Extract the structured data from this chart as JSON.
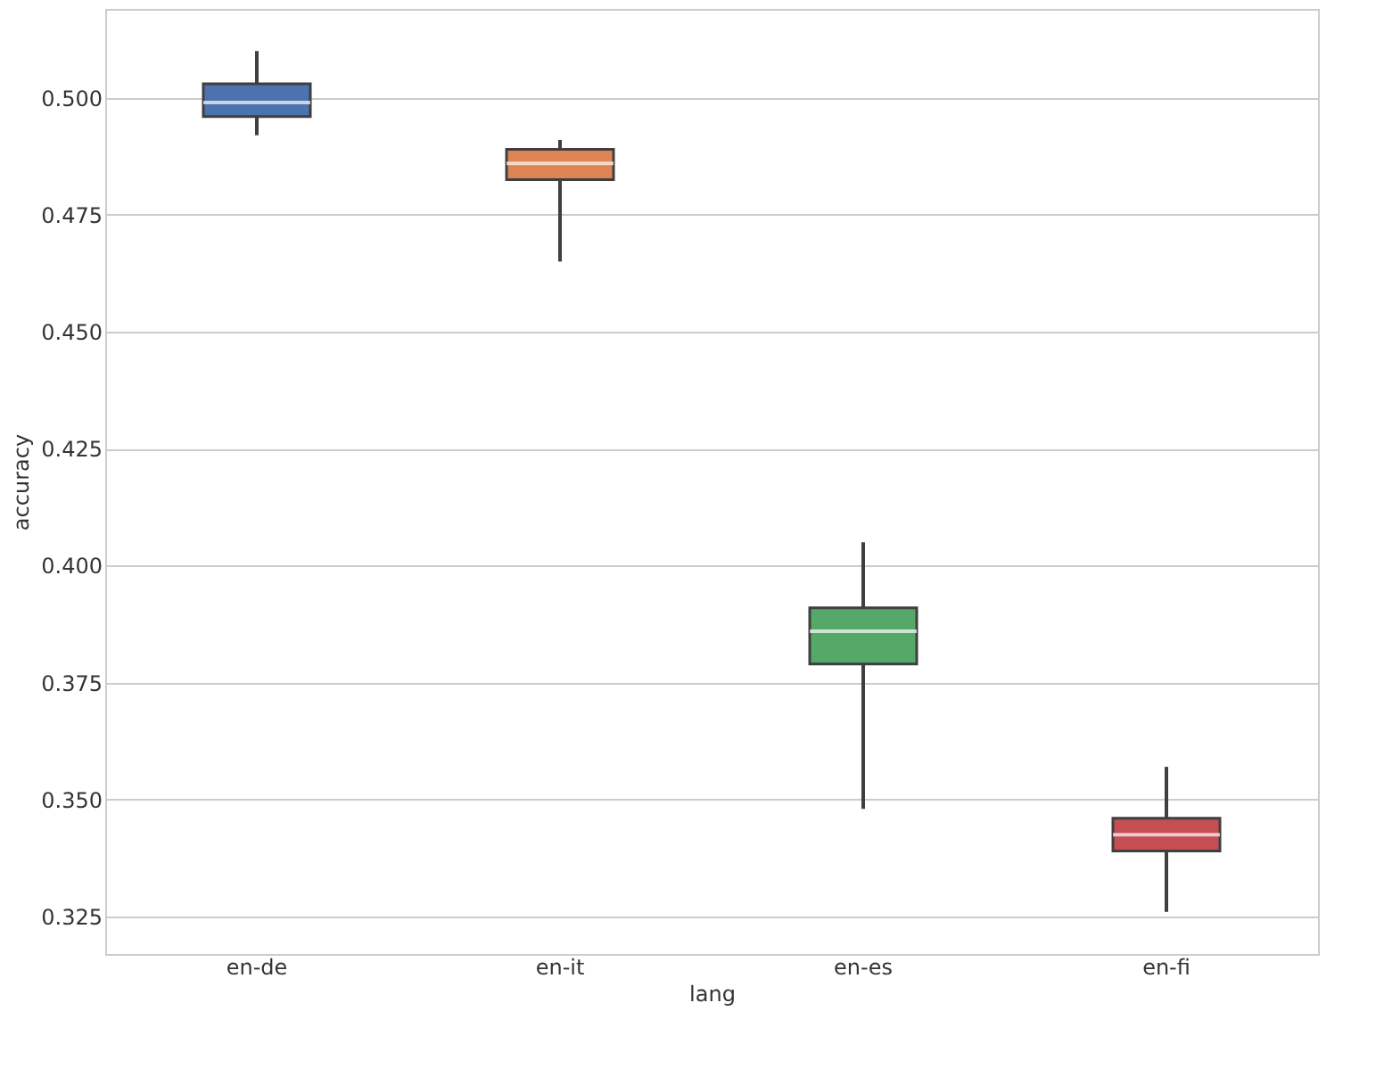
{
  "chart_data": {
    "type": "box",
    "xlabel": "lang",
    "ylabel": "accuracy",
    "categories": [
      "en-de",
      "en-it",
      "en-es",
      "en-fi"
    ],
    "colors": [
      "#4c72b0",
      "#dd8452",
      "#55a868",
      "#c44e52"
    ],
    "boxes": [
      {
        "low": 0.492,
        "q1": 0.496,
        "median": 0.499,
        "q3": 0.503,
        "high": 0.51
      },
      {
        "low": 0.465,
        "q1": 0.4825,
        "median": 0.486,
        "q3": 0.489,
        "high": 0.491
      },
      {
        "low": 0.348,
        "q1": 0.379,
        "median": 0.386,
        "q3": 0.391,
        "high": 0.405
      },
      {
        "low": 0.326,
        "q1": 0.339,
        "median": 0.3425,
        "q3": 0.346,
        "high": 0.357
      }
    ],
    "ylim": [
      0.317,
      0.519
    ],
    "yticks": [
      {
        "value": 0.325,
        "label": "0.325"
      },
      {
        "value": 0.35,
        "label": "0.350"
      },
      {
        "value": 0.375,
        "label": "0.375"
      },
      {
        "value": 0.4,
        "label": "0.400"
      },
      {
        "value": 0.425,
        "label": "0.425"
      },
      {
        "value": 0.45,
        "label": "0.450"
      },
      {
        "value": 0.475,
        "label": "0.475"
      },
      {
        "value": 0.5,
        "label": "0.500"
      }
    ],
    "grid": "y"
  }
}
